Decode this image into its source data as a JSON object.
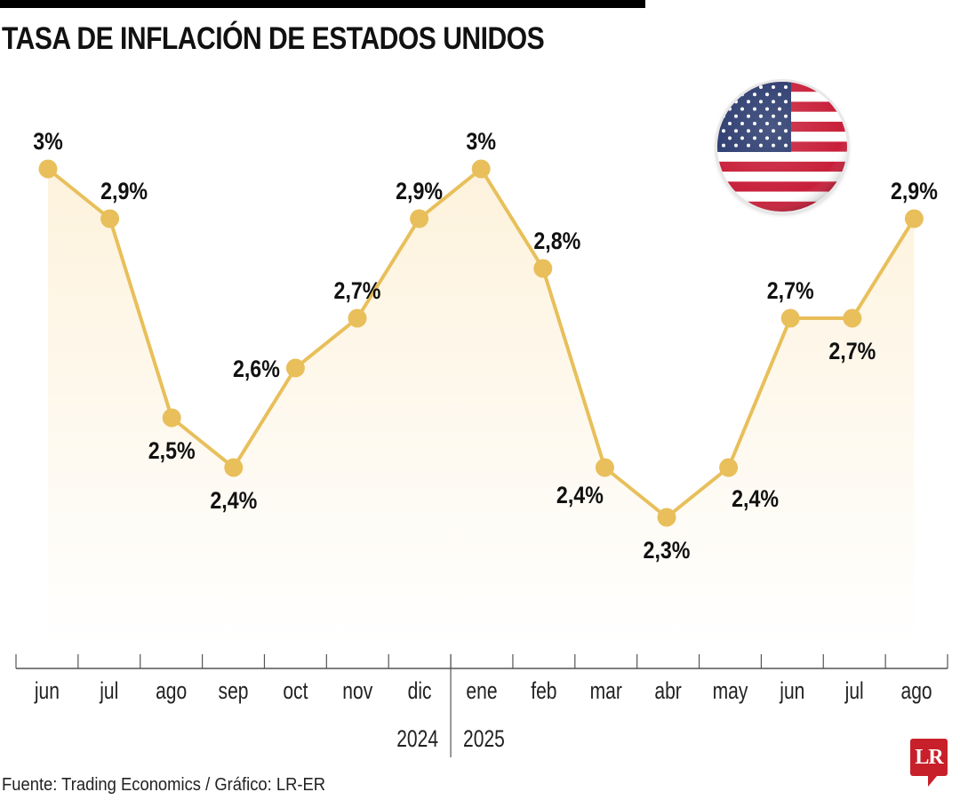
{
  "title": "TASA DE INFLACIÓN DE ESTADOS UNIDOS",
  "source": "Fuente: Trading Economics / Gráfico: LR-ER",
  "logo": "LR",
  "colors": {
    "line": "#e8bf5a",
    "point": "#e8bf5a",
    "fill_top": "#fdf2dc",
    "fill_bottom": "#ffffff",
    "axis": "#555555",
    "logo": "#c8202a"
  },
  "flag_icon": "us-flag-icon",
  "chart_data": {
    "type": "area",
    "title": "TASA DE INFLACIÓN DE ESTADOS UNIDOS",
    "xlabel": "",
    "ylabel": "",
    "ylim": [
      2.3,
      3.0
    ],
    "grid": false,
    "categories": [
      "jun",
      "jul",
      "ago",
      "sep",
      "oct",
      "nov",
      "dic",
      "ene",
      "feb",
      "mar",
      "abr",
      "may",
      "jun",
      "jul",
      "ago"
    ],
    "years": [
      {
        "label": "2024",
        "from": 0,
        "to": 6
      },
      {
        "label": "2025",
        "from": 7,
        "to": 14
      }
    ],
    "series": [
      {
        "name": "Inflación",
        "values": [
          3.0,
          2.9,
          2.5,
          2.4,
          2.6,
          2.7,
          2.9,
          3.0,
          2.8,
          2.4,
          2.3,
          2.4,
          2.7,
          2.7,
          2.9
        ],
        "labels": [
          "3%",
          "2,9%",
          "2,5%",
          "2,4%",
          "2,6%",
          "2,7%",
          "2,9%",
          "3%",
          "2,8%",
          "2,4%",
          "2,3%",
          "2,4%",
          "2,7%",
          "2,7%",
          "2,9%"
        ],
        "label_positions": [
          "above",
          "above-right",
          "below",
          "below",
          "left",
          "above",
          "above",
          "above",
          "above-right",
          "below-left",
          "below",
          "below-right",
          "above",
          "below",
          "above"
        ]
      }
    ]
  }
}
